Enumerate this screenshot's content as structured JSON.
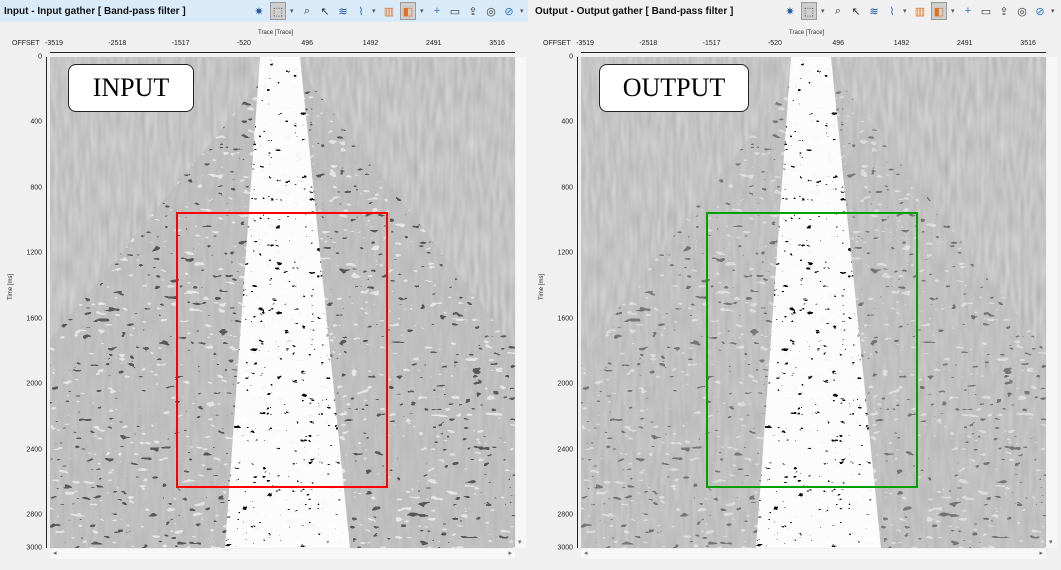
{
  "panels": [
    {
      "title": "Input - Input gather [ Band-pass filter ]",
      "label": "INPUT",
      "titlebar_color": "#d9ebf9",
      "roi_color": "#ff0000"
    },
    {
      "title": "Output - Output gather [ Band-pass filter ]",
      "label": "OUTPUT",
      "titlebar_color": "#f0f0f0",
      "roi_color": "#00a000"
    }
  ],
  "toolbar": {
    "icons": [
      "gear-icon",
      "select-region-icon",
      "zoom-icon",
      "pointer-icon",
      "layers-icon",
      "wiggle-icon",
      "colorbar-icon",
      "display-mode-icon",
      "crosshair-icon",
      "comment-icon",
      "export-icon",
      "inspect-icon",
      "compass-icon"
    ]
  },
  "axes": {
    "x_title": "Trace [Trace]",
    "x_key_label": "OFFSET",
    "x_ticks": [
      "-3519",
      "-2518",
      "-1517",
      "-520",
      "496",
      "1492",
      "2491",
      "3516"
    ],
    "y_title": "Time [ms]",
    "y_ticks": [
      "0",
      "400",
      "800",
      "1200",
      "1600",
      "2000",
      "2400",
      "2800",
      "3000"
    ]
  },
  "colors": {
    "background_gray": "#9c9c9c"
  }
}
